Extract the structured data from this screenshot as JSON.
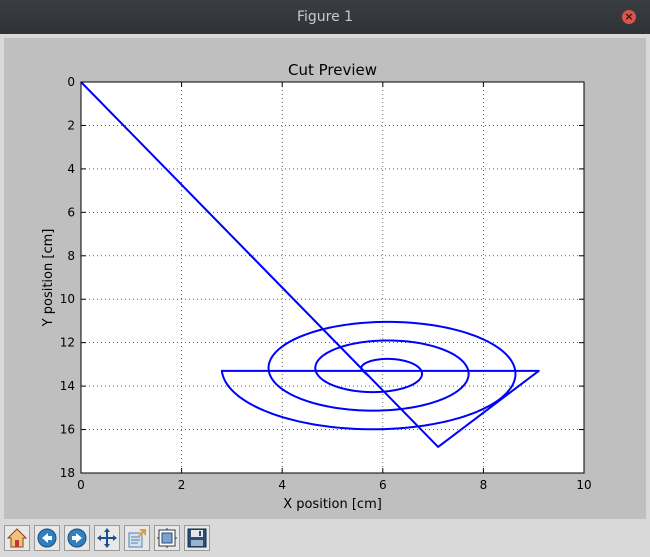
{
  "window": {
    "title": "Figure 1"
  },
  "toolbar": {
    "items": [
      {
        "name": "home-button",
        "icon": "home-icon"
      },
      {
        "name": "back-button",
        "icon": "arrow-left-icon"
      },
      {
        "name": "forward-button",
        "icon": "arrow-right-icon"
      },
      {
        "name": "pan-button",
        "icon": "move-arrows-icon"
      },
      {
        "name": "zoom-button",
        "icon": "zoom-rect-icon"
      },
      {
        "name": "subplots-button",
        "icon": "subplots-icon"
      },
      {
        "name": "save-button",
        "icon": "floppy-disk-icon"
      }
    ]
  },
  "chart_data": {
    "type": "line",
    "title": "Cut Preview",
    "xlabel": "X position [cm]",
    "ylabel": "Y position [cm]",
    "xlim": [
      0,
      10
    ],
    "ylim": [
      18,
      0
    ],
    "y_inverted": true,
    "grid": true,
    "xticks": [
      "0",
      "2",
      "4",
      "6",
      "8",
      "10"
    ],
    "yticks": [
      "0",
      "2",
      "4",
      "6",
      "8",
      "10",
      "12",
      "14",
      "16",
      "18"
    ],
    "line_color": "#0000ff",
    "series": [
      {
        "spiral": {
          "center": [
            5.95,
            13.3
          ],
          "start": [
            5.6,
            13.3
          ],
          "end": [
            9.1,
            13.3
          ],
          "semi_x_start": 0.35,
          "semi_x_end": 3.15,
          "aspect_y_over_x": 0.92,
          "turns": 3
        },
        "path": [
          [
            0,
            0
          ],
          [
            5.75,
            13.6
          ],
          [
            5.6,
            13.3
          ]
        ],
        "tail": [
          [
            9.1,
            13.3
          ],
          [
            7.1,
            16.8
          ],
          [
            0,
            0
          ]
        ]
      }
    ]
  }
}
